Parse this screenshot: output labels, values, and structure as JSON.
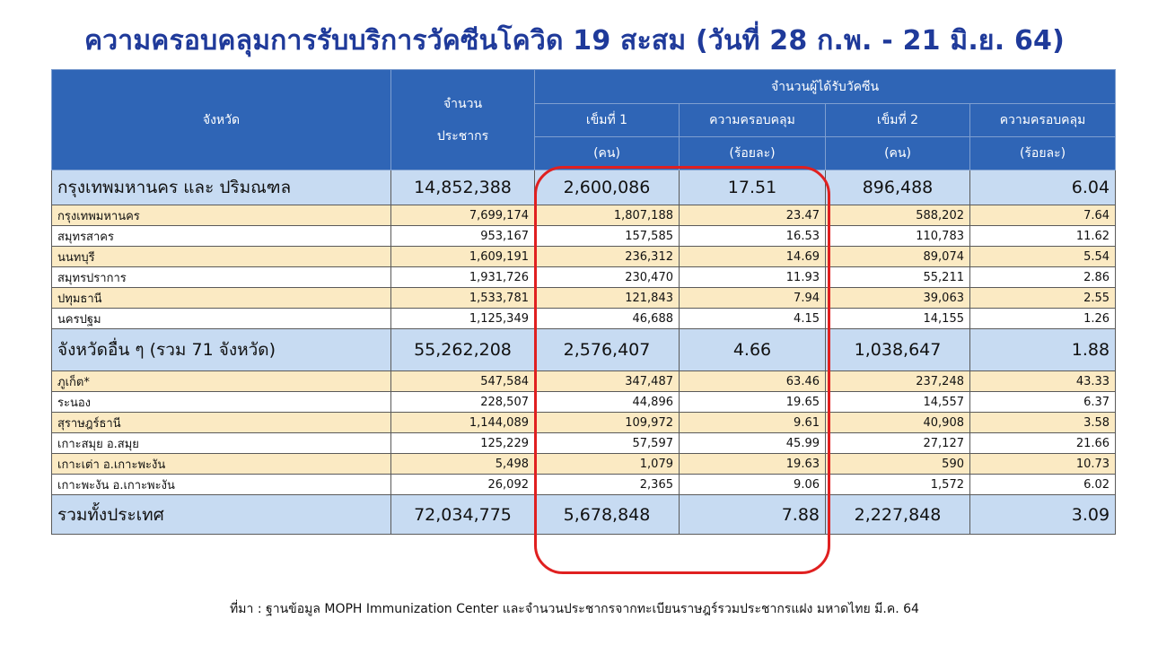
{
  "title": "ความครอบคลุมการรับบริการวัคซีนโควิด 19 สะสม (วันที่ 28 ก.พ. - 21 มิ.ย. 64)",
  "header": {
    "province": "จังหวัด",
    "population_l1": "จำนวน",
    "population_l2": "ประชากร",
    "vaccinated_group": "จำนวนผู้ได้รับวัคซีน",
    "dose1_l1": "เข็มที่ 1",
    "dose1_l2": "(คน)",
    "cov1_l1": "ความครอบคลุม",
    "cov1_l2": "(ร้อยละ)",
    "dose2_l1": "เข็มที่ 2",
    "dose2_l2": "(คน)",
    "cov2_l1": "ความครอบคลุม",
    "cov2_l2": "(ร้อยละ)"
  },
  "rows": [
    {
      "name": "กรุงเทพมหานคร และ ปริมณฑล",
      "pop": "14,852,388",
      "d1": "2,600,086",
      "c1": "17.51",
      "d2": "896,488",
      "c2": "6.04"
    },
    {
      "name": "กรุงเทพมหานคร",
      "pop": "7,699,174",
      "d1": "1,807,188",
      "c1": "23.47",
      "d2": "588,202",
      "c2": "7.64"
    },
    {
      "name": "สมุทรสาคร",
      "pop": "953,167",
      "d1": "157,585",
      "c1": "16.53",
      "d2": "110,783",
      "c2": "11.62"
    },
    {
      "name": "นนทบุรี",
      "pop": "1,609,191",
      "d1": "236,312",
      "c1": "14.69",
      "d2": "89,074",
      "c2": "5.54"
    },
    {
      "name": "สมุทรปราการ",
      "pop": "1,931,726",
      "d1": "230,470",
      "c1": "11.93",
      "d2": "55,211",
      "c2": "2.86"
    },
    {
      "name": "ปทุมธานี",
      "pop": "1,533,781",
      "d1": "121,843",
      "c1": "7.94",
      "d2": "39,063",
      "c2": "2.55"
    },
    {
      "name": "นครปฐม",
      "pop": "1,125,349",
      "d1": "46,688",
      "c1": "4.15",
      "d2": "14,155",
      "c2": "1.26"
    },
    {
      "name": "จังหวัดอื่น ๆ (รวม 71 จังหวัด)",
      "pop": "55,262,208",
      "d1": "2,576,407",
      "c1": "4.66",
      "d2": "1,038,647",
      "c2": "1.88"
    },
    {
      "name": "ภูเก็ต*",
      "pop": "547,584",
      "d1": "347,487",
      "c1": "63.46",
      "d2": "237,248",
      "c2": "43.33"
    },
    {
      "name": "ระนอง",
      "pop": "228,507",
      "d1": "44,896",
      "c1": "19.65",
      "d2": "14,557",
      "c2": "6.37"
    },
    {
      "name": "สุราษฎร์ธานี",
      "pop": "1,144,089",
      "d1": "109,972",
      "c1": "9.61",
      "d2": "40,908",
      "c2": "3.58"
    },
    {
      "name": "เกาะสมุย อ.สมุย",
      "pop": "125,229",
      "d1": "57,597",
      "c1": "45.99",
      "d2": "27,127",
      "c2": "21.66"
    },
    {
      "name": "เกาะเต่า อ.เกาะพะงัน",
      "pop": "5,498",
      "d1": "1,079",
      "c1": "19.63",
      "d2": "590",
      "c2": "10.73"
    },
    {
      "name": "เกาะพะงัน อ.เกาะพะงัน",
      "pop": "26,092",
      "d1": "2,365",
      "c1": "9.06",
      "d2": "1,572",
      "c2": "6.02"
    },
    {
      "name": "รวมทั้งประเทศ",
      "pop": "72,034,775",
      "d1": "5,678,848",
      "c1": "7.88",
      "d2": "2,227,848",
      "c2": "3.09"
    }
  ],
  "source": "ที่มา : ฐานข้อมูล MOPH  Immunization Center  และจำนวนประชากรจากทะเบียนราษฎร์รวมประชากรแฝง มหาดไทย มี.ค. 64",
  "colors": {
    "title": "#1f3a9a",
    "header_bg": "#2f65b6",
    "group_row_bg": "#c7dbf2",
    "stripe_bg": "#fbeac3",
    "highlight_border": "#e02020"
  }
}
